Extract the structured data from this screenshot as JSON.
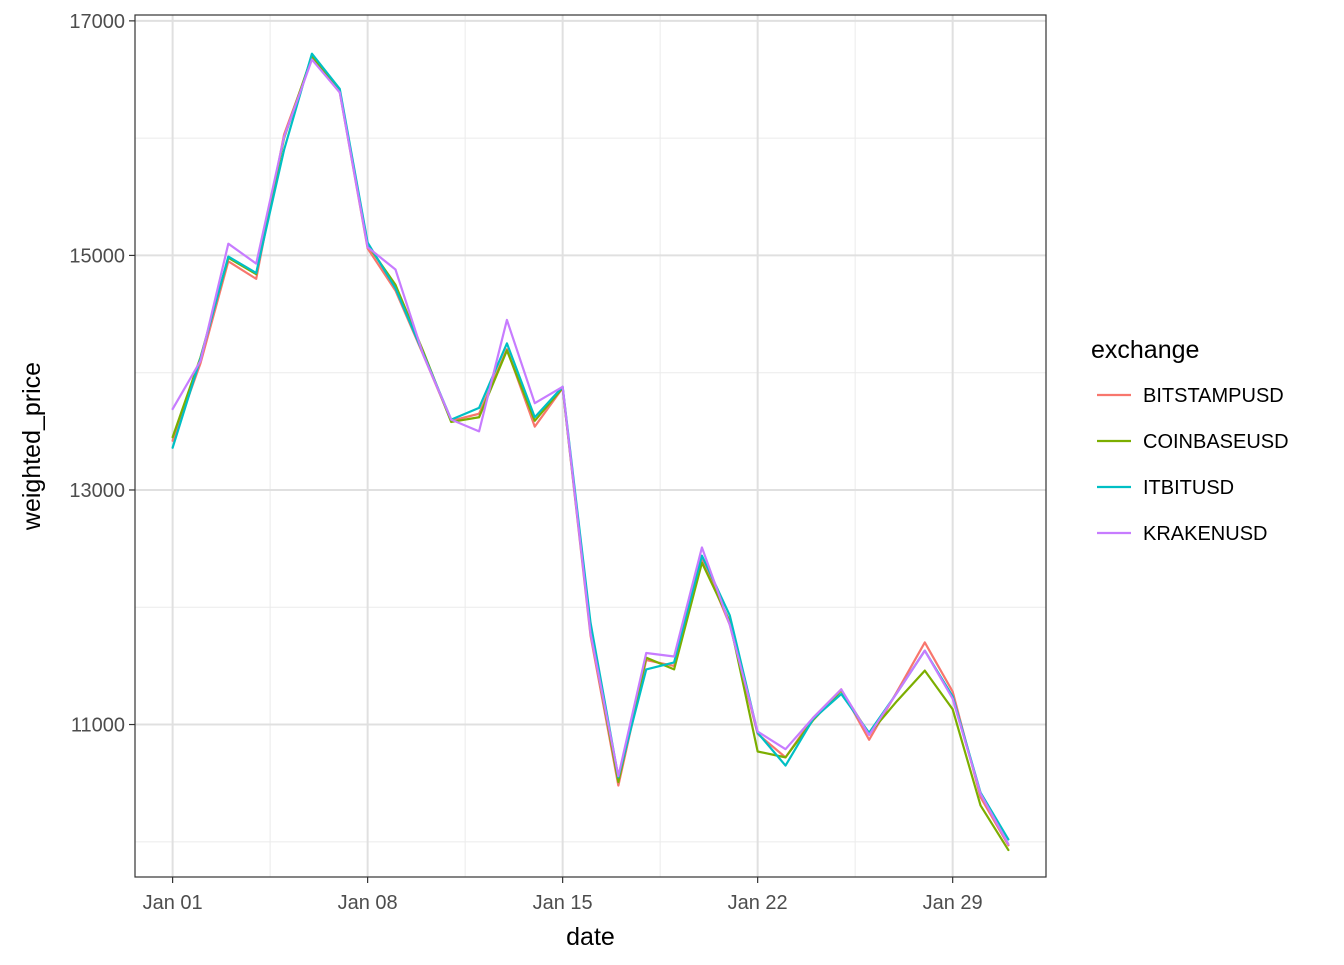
{
  "chart_data": {
    "type": "line",
    "xlabel": "date",
    "ylabel": "weighted_price",
    "x_tick_labels": [
      "Jan 01",
      "Jan 08",
      "Jan 15",
      "Jan 22",
      "Jan 29"
    ],
    "x_ticks": [
      "2018-01-01",
      "2018-01-08",
      "2018-01-15",
      "2018-01-22",
      "2018-01-29"
    ],
    "y_tick_labels": [
      "11000",
      "13000",
      "15000",
      "17000"
    ],
    "y_ticks": [
      11000,
      13000,
      15000,
      17000
    ],
    "xlim": [
      "2018-01-01",
      "2018-01-31"
    ],
    "ylim": [
      9700,
      17050
    ],
    "grid": true,
    "legend_position": "right",
    "legend_title": "exchange",
    "x": [
      "2018-01-01",
      "2018-01-02",
      "2018-01-03",
      "2018-01-04",
      "2018-01-05",
      "2018-01-06",
      "2018-01-07",
      "2018-01-08",
      "2018-01-09",
      "2018-01-10",
      "2018-01-11",
      "2018-01-12",
      "2018-01-13",
      "2018-01-14",
      "2018-01-15",
      "2018-01-16",
      "2018-01-17",
      "2018-01-18",
      "2018-01-19",
      "2018-01-20",
      "2018-01-21",
      "2018-01-22",
      "2018-01-23",
      "2018-01-24",
      "2018-01-25",
      "2018-01-26",
      "2018-01-27",
      "2018-01-28",
      "2018-01-29",
      "2018-01-30",
      "2018-01-31"
    ],
    "series": [
      {
        "name": "BITSTAMPUSD",
        "color": "#F8766D",
        "values": [
          13420,
          14080,
          14950,
          14800,
          16030,
          16680,
          16390,
          15060,
          14700,
          14150,
          13590,
          13650,
          14200,
          13540,
          13870,
          11760,
          10480,
          11550,
          11500,
          12420,
          11850,
          10920,
          10720,
          11060,
          11300,
          10870,
          11280,
          11700,
          11280,
          10380,
          9970
        ]
      },
      {
        "name": "COINBASEUSD",
        "color": "#7CAE00",
        "values": [
          13450,
          14130,
          14980,
          14840,
          16000,
          16700,
          16400,
          15090,
          14750,
          14180,
          13580,
          13620,
          14190,
          13590,
          13870,
          11800,
          10510,
          11570,
          11470,
          12380,
          11880,
          10770,
          10720,
          11040,
          11290,
          10920,
          11200,
          11460,
          11130,
          10310,
          9930
        ]
      },
      {
        "name": "ITBITUSD",
        "color": "#00BFC4",
        "values": [
          13360,
          14120,
          14990,
          14850,
          15900,
          16720,
          16420,
          15110,
          14720,
          14160,
          13600,
          13700,
          14250,
          13620,
          13880,
          11870,
          10550,
          11470,
          11530,
          12440,
          11930,
          10930,
          10650,
          11050,
          11260,
          10930,
          11270,
          11630,
          11240,
          10420,
          10020
        ]
      },
      {
        "name": "KRAKENUSD",
        "color": "#C77CFF",
        "values": [
          13690,
          14100,
          15100,
          14930,
          16010,
          16670,
          16390,
          15070,
          14880,
          14150,
          13600,
          13500,
          14450,
          13740,
          13880,
          11780,
          10560,
          11610,
          11580,
          12510,
          11850,
          10940,
          10790,
          11060,
          11300,
          10910,
          11270,
          11630,
          11220,
          10410,
          9980
        ]
      }
    ]
  }
}
